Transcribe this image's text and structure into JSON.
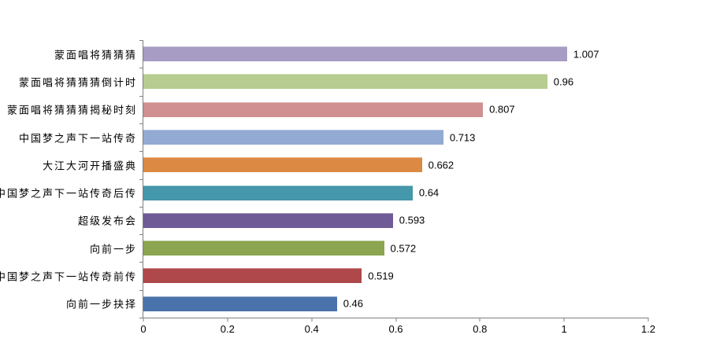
{
  "chart_data": {
    "type": "bar",
    "orientation": "horizontal",
    "title": "",
    "xlabel": "",
    "ylabel": "",
    "categories": [
      "蒙面唱将猜猜猜",
      "蒙面唱将猜猜猜倒计时",
      "蒙面唱将猜猜猜揭秘时刻",
      "中国梦之声下一站传奇",
      "大江大河开播盛典",
      "中国梦之声下一站传奇后传",
      "超级发布会",
      "向前一步",
      "中国梦之声下一站传奇前传",
      "向前一步抉择"
    ],
    "values": [
      1.007,
      0.96,
      0.807,
      0.713,
      0.662,
      0.64,
      0.593,
      0.572,
      0.519,
      0.46
    ],
    "value_labels": [
      "1.007",
      "0.96",
      "0.807",
      "0.713",
      "0.662",
      "0.64",
      "0.593",
      "0.572",
      "0.519",
      "0.46"
    ],
    "bar_colors": [
      "#A79CC3",
      "#B6CC90",
      "#D08F90",
      "#93AAD3",
      "#DC8943",
      "#4597AA",
      "#6F5B96",
      "#8BA550",
      "#AF484A",
      "#4973AA"
    ],
    "xlim": [
      0,
      1.2
    ],
    "x_ticks": [
      "0",
      "0.2",
      "0.4",
      "0.6",
      "0.8",
      "1",
      "1.2"
    ],
    "x_tick_values": [
      0,
      0.2,
      0.4,
      0.6,
      0.8,
      1.0,
      1.2
    ],
    "grid": false,
    "legend": false,
    "axis_color": "#7F7F7F",
    "text_color": "#000000",
    "background_color": "#FFFFFF"
  }
}
